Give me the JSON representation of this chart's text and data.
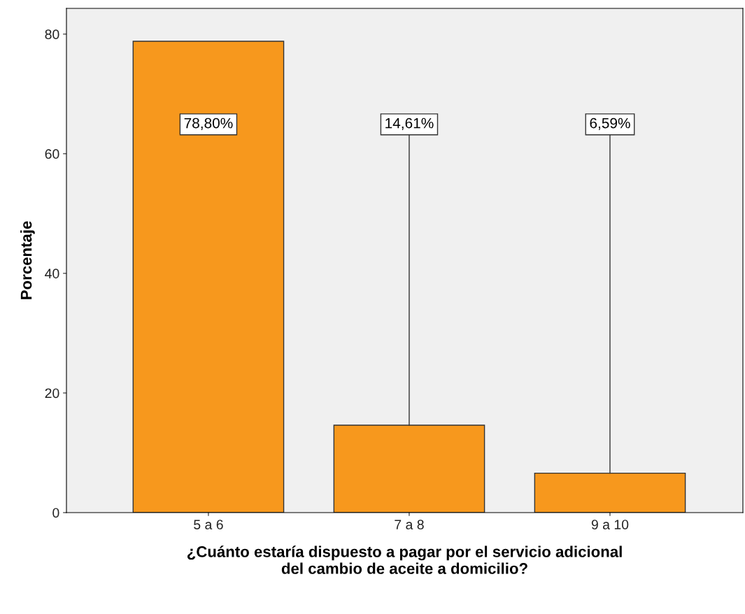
{
  "chart_data": {
    "type": "bar",
    "xlabel": "¿Cuánto estaría dispuesto a pagar por el servicio adicional\ndel cambio de aceite a domicilio?",
    "ylabel": "Porcentaje",
    "categories": [
      "5 a 6",
      "7 a 8",
      "9 a 10"
    ],
    "values": [
      78.8,
      14.61,
      6.59
    ],
    "value_labels": [
      "78,80%",
      "14,61%",
      "6,59%"
    ],
    "color": "#f7981d",
    "ylim": [
      0,
      84.3
    ],
    "yticks": [
      0,
      20,
      40,
      60,
      80
    ],
    "grid": false
  }
}
